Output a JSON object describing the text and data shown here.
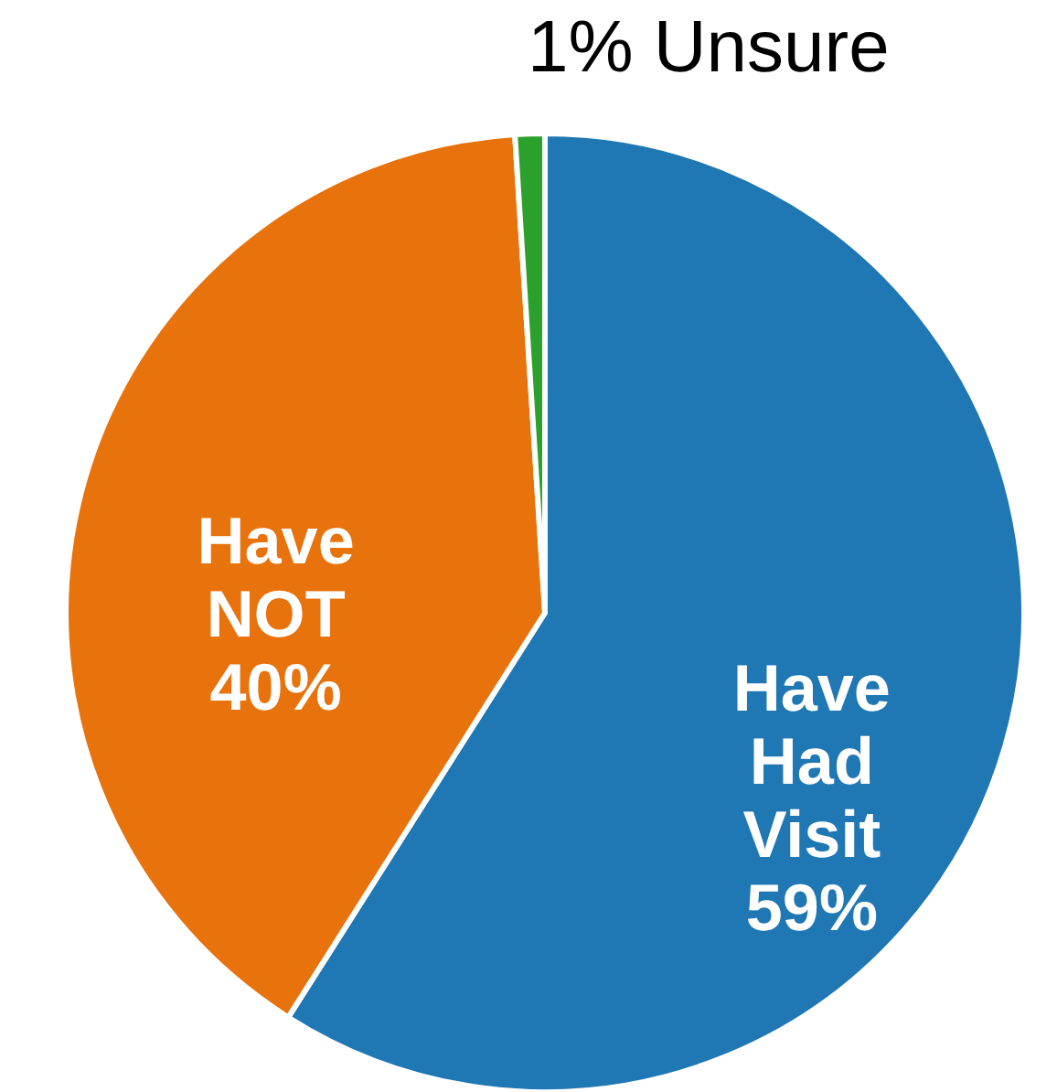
{
  "chart_data": {
    "type": "pie",
    "categories": [
      "Have Had Visit",
      "Have NOT",
      "Unsure"
    ],
    "values": [
      59,
      40,
      1
    ],
    "colors": [
      "#1f77b4",
      "#e8720c",
      "#2ca02c"
    ],
    "value_labels": [
      "59%",
      "40%",
      "1%"
    ]
  }
}
